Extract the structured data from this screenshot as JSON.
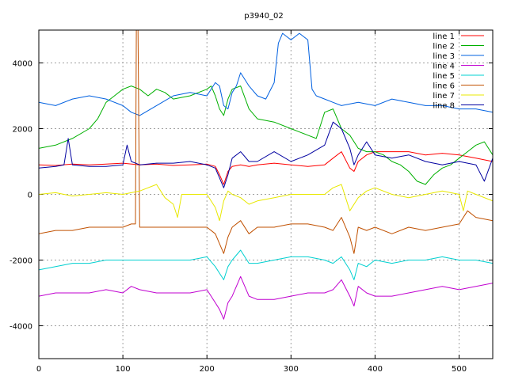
{
  "chart_data": {
    "type": "line",
    "title": "p3940_02",
    "xlabel": "",
    "ylabel": "",
    "xlim": [
      0,
      540
    ],
    "ylim": [
      -5000,
      5000
    ],
    "xticks": [
      0,
      100,
      200,
      300,
      400,
      500
    ],
    "yticks": [
      -4000,
      -2000,
      0,
      2000,
      4000
    ],
    "grid": true,
    "legend": "top-right",
    "series": [
      {
        "name": "line 1",
        "color": "#ff0000",
        "x": [
          0,
          20,
          40,
          60,
          80,
          100,
          120,
          140,
          160,
          180,
          200,
          210,
          215,
          220,
          225,
          230,
          240,
          250,
          260,
          280,
          300,
          320,
          340,
          350,
          360,
          370,
          375,
          380,
          390,
          400,
          420,
          440,
          460,
          480,
          500,
          520,
          540
        ],
        "y": [
          900,
          880,
          920,
          900,
          920,
          950,
          900,
          920,
          880,
          900,
          920,
          850,
          600,
          300,
          700,
          850,
          900,
          850,
          900,
          950,
          900,
          850,
          900,
          1100,
          1300,
          800,
          700,
          1000,
          1200,
          1300,
          1300,
          1300,
          1200,
          1250,
          1200,
          1100,
          1000
        ]
      },
      {
        "name": "line 2",
        "color": "#00b000",
        "x": [
          0,
          20,
          40,
          60,
          70,
          80,
          90,
          100,
          110,
          120,
          130,
          140,
          150,
          160,
          180,
          190,
          200,
          205,
          210,
          215,
          220,
          225,
          230,
          240,
          250,
          260,
          280,
          300,
          320,
          330,
          340,
          350,
          360,
          370,
          380,
          390,
          400,
          410,
          420,
          430,
          440,
          450,
          460,
          470,
          480,
          490,
          500,
          510,
          520,
          530,
          540
        ],
        "y": [
          1400,
          1500,
          1700,
          2000,
          2300,
          2800,
          3000,
          3200,
          3300,
          3200,
          3000,
          3200,
          3100,
          2900,
          3000,
          3100,
          3200,
          3300,
          3000,
          2600,
          2400,
          2900,
          3200,
          3300,
          2600,
          2300,
          2200,
          2000,
          1800,
          1700,
          2500,
          2600,
          2000,
          1800,
          1400,
          1300,
          1300,
          1200,
          1000,
          900,
          700,
          400,
          300,
          600,
          800,
          900,
          1100,
          1300,
          1500,
          1600,
          1200
        ]
      },
      {
        "name": "line 3",
        "color": "#0060e0",
        "x": [
          0,
          20,
          40,
          60,
          80,
          100,
          110,
          120,
          140,
          160,
          180,
          200,
          210,
          215,
          220,
          225,
          230,
          235,
          240,
          250,
          260,
          270,
          280,
          285,
          290,
          300,
          310,
          320,
          325,
          330,
          340,
          350,
          360,
          380,
          400,
          420,
          440,
          460,
          480,
          500,
          520,
          540
        ],
        "y": [
          2800,
          2700,
          2900,
          3000,
          2900,
          2700,
          2500,
          2400,
          2700,
          3000,
          3100,
          3000,
          3400,
          3300,
          2700,
          2600,
          3100,
          3300,
          3700,
          3300,
          3000,
          2900,
          3400,
          4600,
          4900,
          4700,
          4900,
          4700,
          3200,
          3000,
          2900,
          2800,
          2700,
          2800,
          2700,
          2900,
          2800,
          2700,
          2700,
          2600,
          2600,
          2500
        ]
      },
      {
        "name": "line 4",
        "color": "#c000d0",
        "x": [
          0,
          20,
          40,
          60,
          80,
          100,
          110,
          120,
          140,
          160,
          180,
          200,
          210,
          215,
          220,
          225,
          230,
          240,
          250,
          260,
          280,
          300,
          320,
          340,
          350,
          360,
          370,
          375,
          380,
          390,
          400,
          420,
          440,
          460,
          480,
          500,
          520,
          540
        ],
        "y": [
          -3100,
          -3000,
          -3000,
          -3000,
          -2900,
          -3000,
          -2800,
          -2900,
          -3000,
          -3000,
          -3000,
          -2900,
          -3300,
          -3500,
          -3800,
          -3300,
          -3100,
          -2500,
          -3100,
          -3200,
          -3200,
          -3100,
          -3000,
          -3000,
          -2900,
          -2600,
          -3100,
          -3400,
          -2800,
          -3000,
          -3100,
          -3100,
          -3000,
          -2900,
          -2800,
          -2900,
          -2800,
          -2700
        ]
      },
      {
        "name": "line 5",
        "color": "#00d0d0",
        "x": [
          0,
          20,
          40,
          60,
          80,
          100,
          120,
          140,
          160,
          180,
          200,
          210,
          215,
          220,
          225,
          230,
          240,
          250,
          260,
          280,
          300,
          320,
          340,
          350,
          360,
          370,
          375,
          380,
          390,
          400,
          420,
          440,
          460,
          480,
          500,
          520,
          540
        ],
        "y": [
          -2300,
          -2200,
          -2100,
          -2100,
          -2000,
          -2000,
          -2000,
          -2000,
          -2000,
          -2000,
          -1900,
          -2200,
          -2400,
          -2600,
          -2200,
          -2000,
          -1700,
          -2100,
          -2100,
          -2000,
          -1900,
          -1900,
          -2000,
          -2100,
          -1900,
          -2300,
          -2600,
          -2100,
          -2200,
          -2000,
          -2100,
          -2000,
          -2000,
          -1900,
          -2000,
          -2000,
          -2100
        ]
      },
      {
        "name": "line 6",
        "color": "#c05000",
        "x": [
          0,
          20,
          40,
          60,
          80,
          100,
          110,
          115,
          116,
          118,
          120,
          130,
          140,
          160,
          180,
          200,
          210,
          215,
          220,
          225,
          230,
          240,
          250,
          260,
          280,
          300,
          320,
          340,
          350,
          360,
          370,
          375,
          380,
          390,
          400,
          420,
          440,
          460,
          480,
          500,
          510,
          520,
          540
        ],
        "y": [
          -1200,
          -1100,
          -1100,
          -1000,
          -1000,
          -1000,
          -900,
          -900,
          5000,
          5000,
          -1000,
          -1000,
          -1000,
          -1000,
          -1000,
          -1000,
          -1200,
          -1500,
          -1800,
          -1300,
          -1000,
          -800,
          -1200,
          -1000,
          -1000,
          -900,
          -900,
          -1000,
          -1100,
          -700,
          -1300,
          -1800,
          -1000,
          -1100,
          -1000,
          -1200,
          -1000,
          -1100,
          -1000,
          -900,
          -500,
          -700,
          -800
        ]
      },
      {
        "name": "line 7",
        "color": "#e8e800",
        "x": [
          0,
          20,
          40,
          60,
          80,
          100,
          120,
          140,
          150,
          160,
          165,
          170,
          180,
          200,
          210,
          215,
          220,
          225,
          230,
          240,
          250,
          260,
          280,
          300,
          320,
          340,
          350,
          360,
          365,
          370,
          380,
          390,
          400,
          420,
          440,
          460,
          480,
          500,
          505,
          510,
          520,
          540
        ],
        "y": [
          0,
          50,
          -50,
          0,
          50,
          0,
          100,
          300,
          -100,
          -300,
          -700,
          0,
          0,
          0,
          -400,
          -800,
          -200,
          100,
          0,
          -100,
          -300,
          -200,
          -100,
          0,
          0,
          0,
          200,
          300,
          -100,
          -500,
          -100,
          100,
          200,
          0,
          -100,
          0,
          100,
          0,
          -500,
          100,
          0,
          -200
        ]
      },
      {
        "name": "line 8",
        "color": "#0000a0",
        "x": [
          0,
          20,
          30,
          35,
          40,
          60,
          80,
          100,
          105,
          110,
          120,
          140,
          160,
          180,
          200,
          210,
          215,
          220,
          225,
          230,
          240,
          250,
          260,
          280,
          300,
          320,
          340,
          350,
          360,
          370,
          375,
          380,
          390,
          400,
          420,
          440,
          460,
          480,
          500,
          520,
          530,
          540
        ],
        "y": [
          800,
          850,
          900,
          1700,
          900,
          850,
          850,
          900,
          1500,
          1000,
          900,
          950,
          950,
          1000,
          900,
          800,
          500,
          200,
          600,
          1100,
          1300,
          1000,
          1000,
          1300,
          1000,
          1200,
          1500,
          2200,
          2000,
          1400,
          900,
          1200,
          1600,
          1200,
          1100,
          1200,
          1000,
          900,
          1000,
          900,
          400,
          1100
        ]
      }
    ]
  }
}
